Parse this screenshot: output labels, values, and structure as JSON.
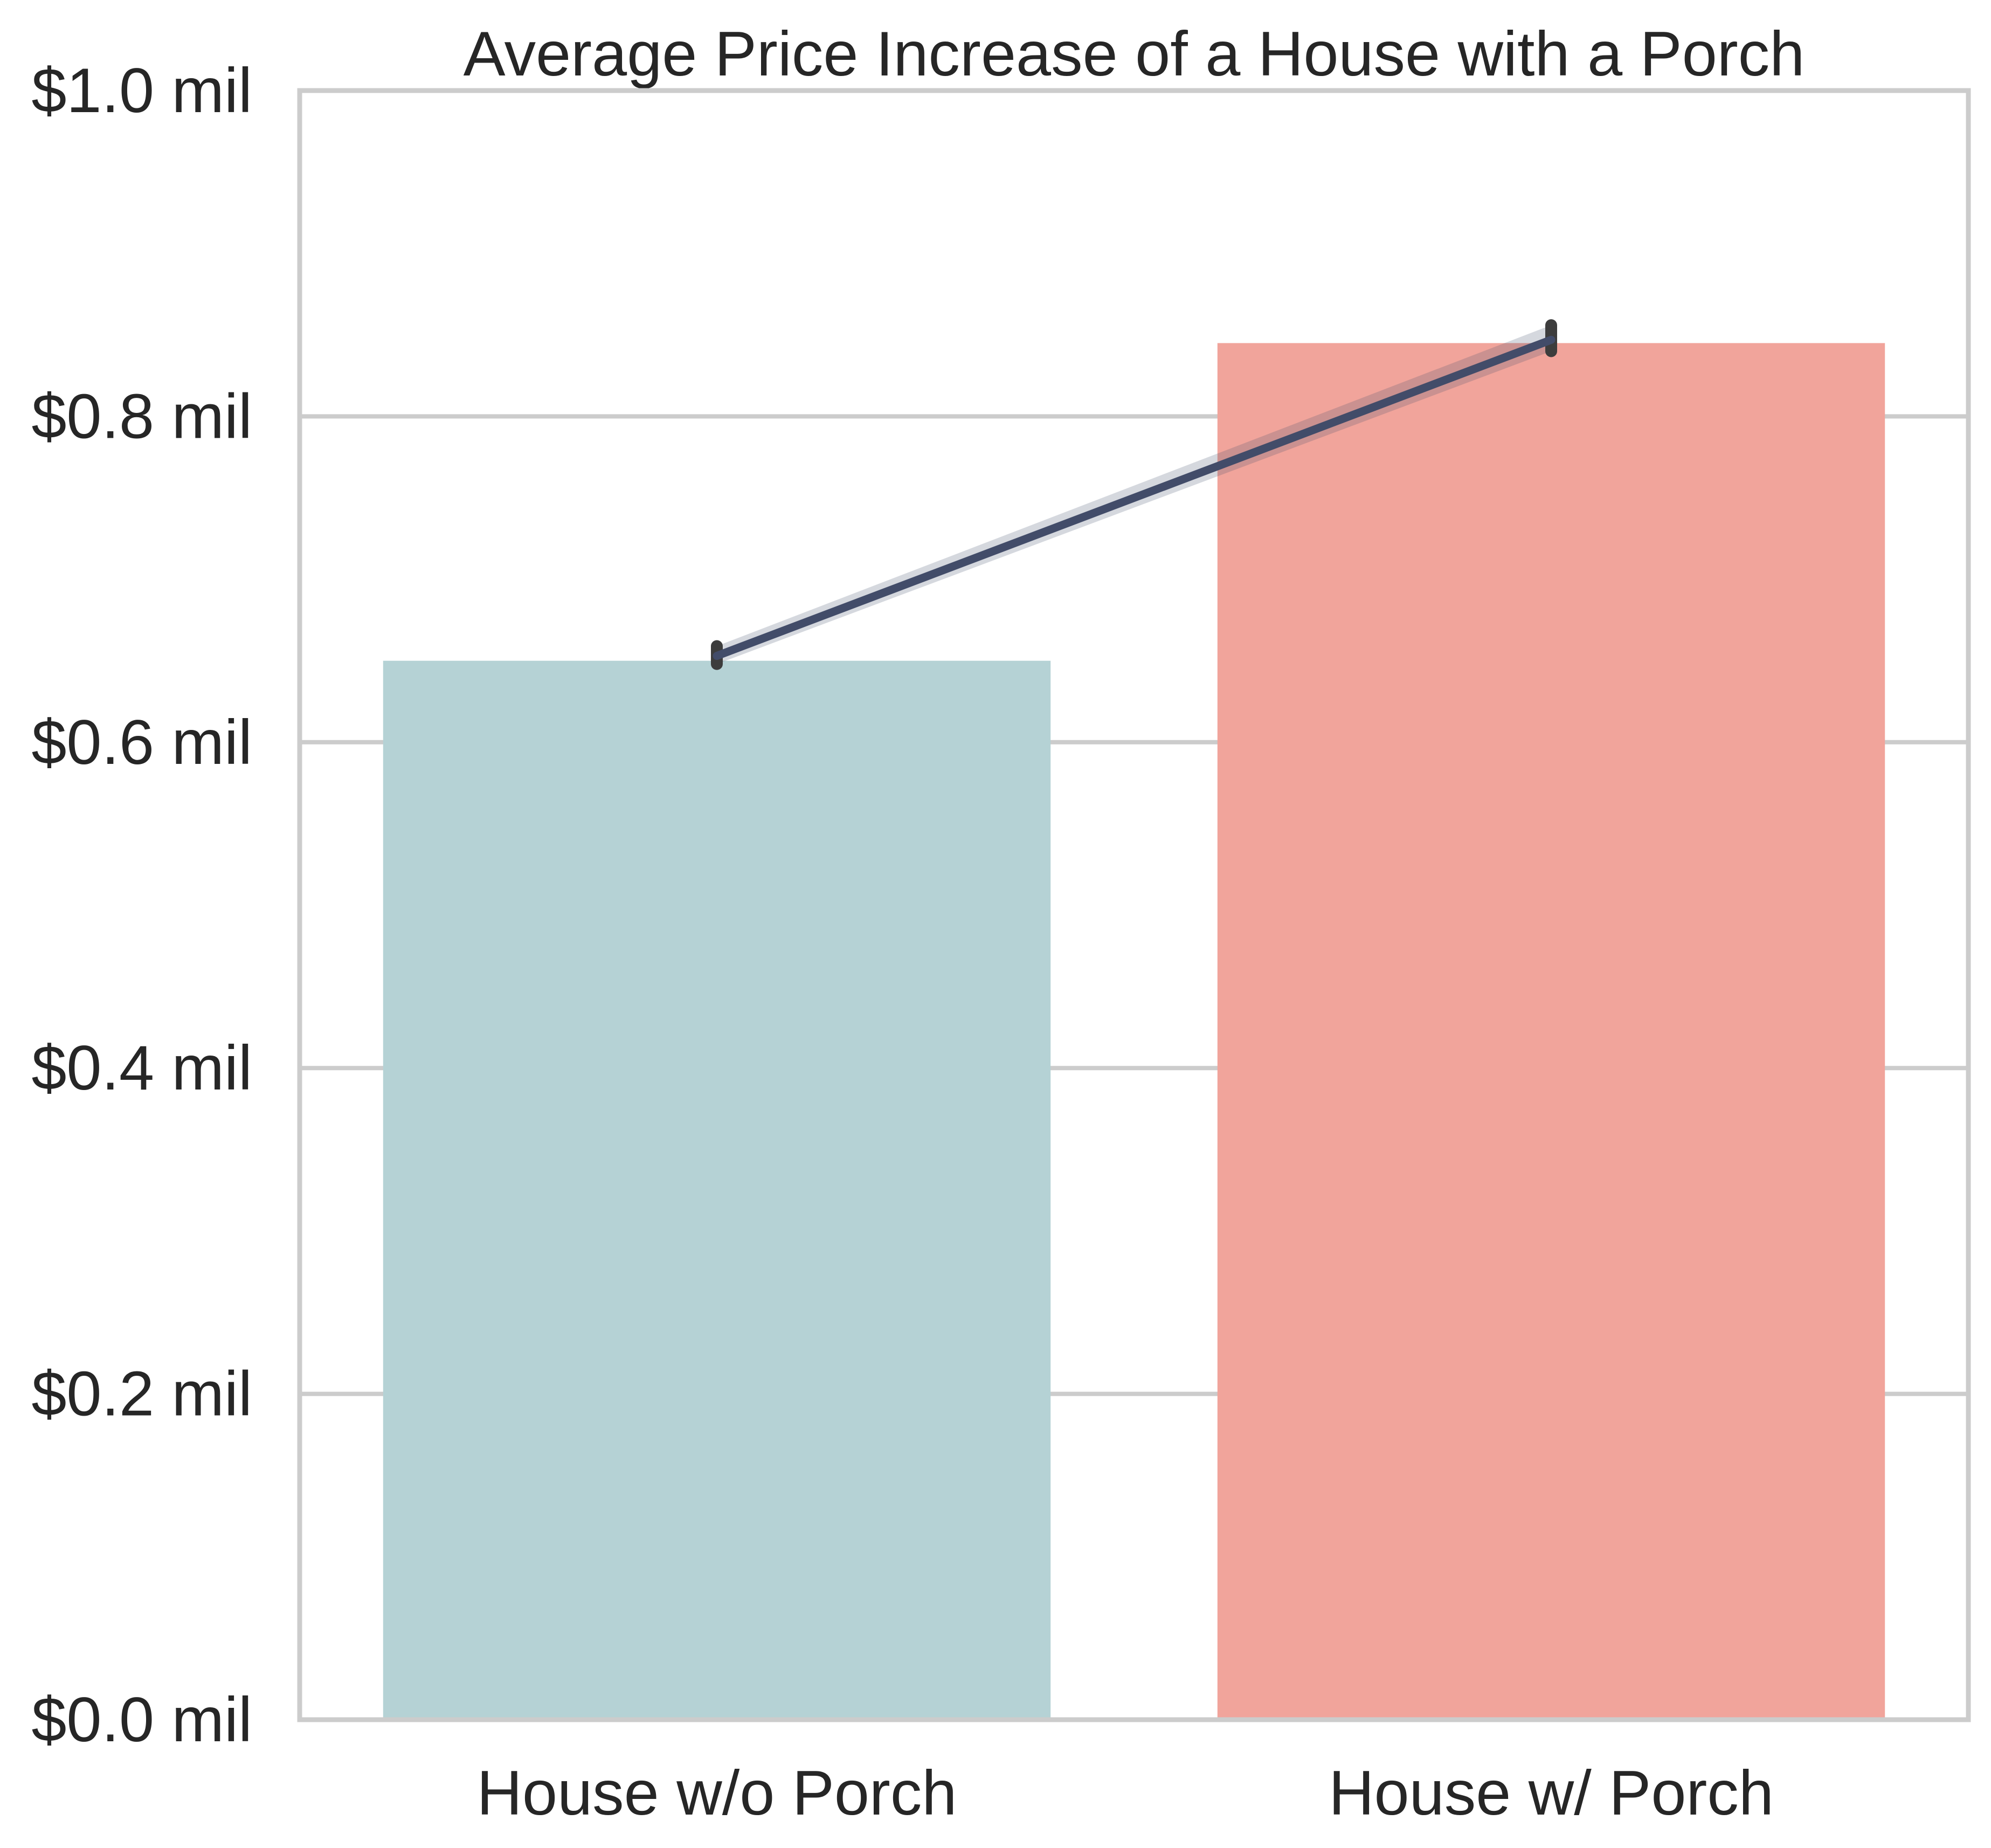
{
  "chart_data": {
    "type": "bar",
    "title": "Average Price Increase of a House with a Porch",
    "xlabel": "",
    "ylabel": "",
    "categories": [
      "House w/o Porch",
      "House w/ Porch"
    ],
    "values": [
      0.65,
      0.845
    ],
    "bar_colors": [
      "#b5d2d5",
      "#f1a49b"
    ],
    "overlay_line": {
      "values": [
        0.653,
        0.847
      ],
      "ci_low": [
        0.648,
        0.84
      ],
      "ci_high": [
        0.659,
        0.856
      ],
      "color": "#424c69"
    },
    "ylim": [
      0,
      1.0
    ],
    "yticks": [
      0.0,
      0.2,
      0.4,
      0.6,
      0.8,
      1.0
    ],
    "ytick_labels": [
      "$0.0 mil",
      "$0.2 mil",
      "$0.4 mil",
      "$0.6 mil",
      "$0.8 mil",
      "$1.0 mil"
    ],
    "grid": "horizontal",
    "grid_color": "#cccccc",
    "spine_color": "#cccccc",
    "legend": "none"
  }
}
